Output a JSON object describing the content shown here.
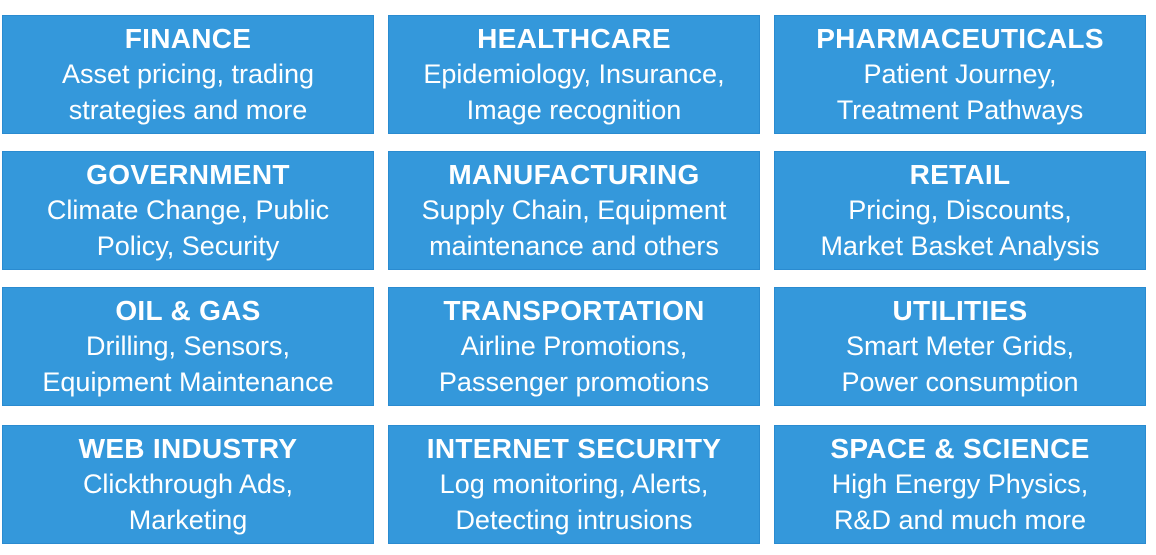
{
  "tiles": [
    {
      "title": "FINANCE",
      "line1": "Asset pricing, trading",
      "line2": "strategies and more"
    },
    {
      "title": "HEALTHCARE",
      "line1": "Epidemiology, Insurance,",
      "line2": "Image recognition"
    },
    {
      "title": "PHARMACEUTICALS",
      "line1": "Patient Journey,",
      "line2": "Treatment Pathways"
    },
    {
      "title": "GOVERNMENT",
      "line1": "Climate Change, Public",
      "line2": "Policy, Security"
    },
    {
      "title": "MANUFACTURING",
      "line1": "Supply Chain, Equipment",
      "line2": "maintenance and others"
    },
    {
      "title": "RETAIL",
      "line1": "Pricing, Discounts,",
      "line2": "Market Basket Analysis"
    },
    {
      "title": "OIL & GAS",
      "line1": "Drilling, Sensors,",
      "line2": "Equipment Maintenance"
    },
    {
      "title": "TRANSPORTATION",
      "line1": "Airline Promotions,",
      "line2": "Passenger promotions"
    },
    {
      "title": "UTILITIES",
      "line1": "Smart Meter Grids,",
      "line2": "Power consumption"
    },
    {
      "title": "WEB INDUSTRY",
      "line1": "Clickthrough Ads,",
      "line2": "Marketing"
    },
    {
      "title": "INTERNET SECURITY",
      "line1": "Log monitoring, Alerts,",
      "line2": "Detecting intrusions"
    },
    {
      "title": "SPACE & SCIENCE",
      "line1": "High Energy Physics,",
      "line2": "R&D and much more"
    }
  ],
  "colors": {
    "tile_background": "#3498db",
    "text": "#ffffff"
  }
}
